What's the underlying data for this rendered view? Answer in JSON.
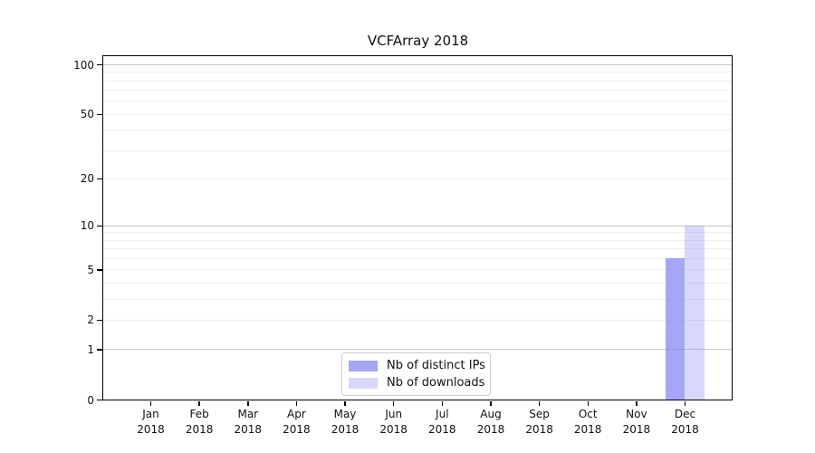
{
  "chart_data": {
    "type": "bar",
    "title": "VCFArray 2018",
    "year": "2018",
    "categories": [
      "Jan",
      "Feb",
      "Mar",
      "Apr",
      "May",
      "Jun",
      "Jul",
      "Aug",
      "Sep",
      "Oct",
      "Nov",
      "Dec"
    ],
    "series": [
      {
        "name": "Nb of distinct IPs",
        "color": "rgba(128,128,243,0.70)",
        "color_hex_on_white": "#a9a9f6",
        "values": [
          0,
          0,
          0,
          0,
          0,
          0,
          0,
          0,
          0,
          0,
          0,
          6
        ]
      },
      {
        "name": "Nb of downloads",
        "color": "rgba(148,148,240,0.36)",
        "color_hex_on_white": "#d9d9f9",
        "values": [
          0,
          0,
          0,
          0,
          0,
          0,
          0,
          0,
          0,
          0,
          0,
          10
        ]
      }
    ],
    "xlabel": "",
    "ylabel": "",
    "yticks": [
      0,
      1,
      2,
      5,
      10,
      20,
      50,
      100
    ],
    "grid_major": [
      1,
      10,
      100
    ],
    "grid_minor": [
      2,
      3,
      4,
      5,
      6,
      7,
      8,
      9,
      20,
      30,
      40,
      50,
      60,
      70,
      80,
      90
    ],
    "ylim": [
      0,
      112
    ],
    "yscale": "log1p",
    "grid": "horizontal",
    "legend_position": "lower center"
  },
  "colors": {
    "grid_major": "#c6c6c6",
    "grid_minor": "#ededed",
    "axis": "#000000",
    "legend_border": "#cccccc",
    "text": "#111111"
  }
}
